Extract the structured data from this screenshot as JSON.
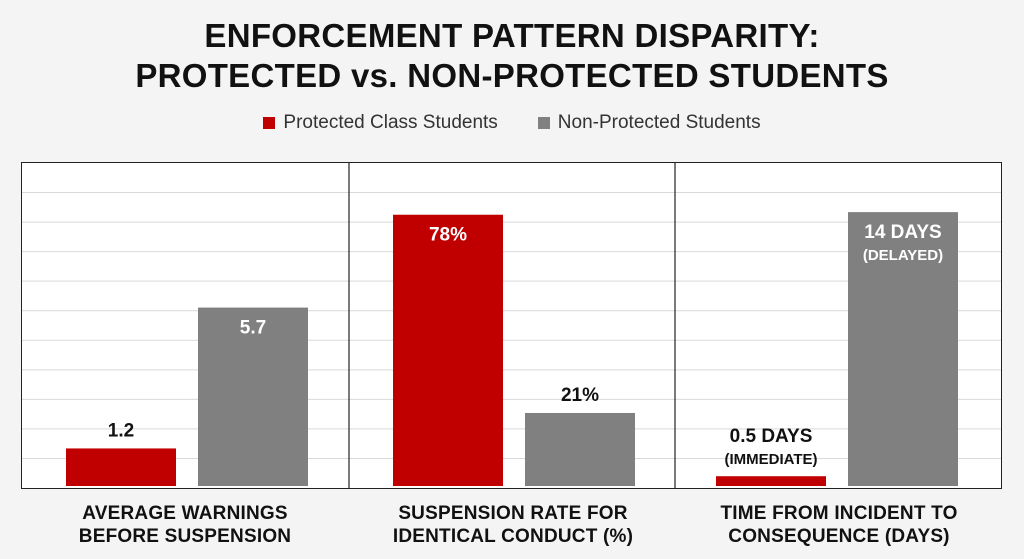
{
  "chart_data": {
    "type": "bar",
    "title_lines": [
      "ENFORCEMENT PATTERN DISPARITY:",
      "PROTECTED vs. NON-PROTECTED STUDENTS"
    ],
    "legend": [
      {
        "name": "Protected Class Students",
        "color": "#c00000"
      },
      {
        "name": "Non-Protected Students",
        "color": "#808080"
      }
    ],
    "panels": [
      {
        "category_lines": [
          "AVERAGE WARNINGS",
          "BEFORE SUSPENSION"
        ],
        "ylim": [
          0,
          10
        ],
        "values": [
          1.2,
          5.7
        ],
        "data_labels": [
          [
            "1.2"
          ],
          [
            "5.7"
          ]
        ],
        "label_inside": [
          false,
          true
        ]
      },
      {
        "category_lines": [
          "SUSPENSION RATE FOR",
          "IDENTICAL CONDUCT (%)"
        ],
        "ylim": [
          0,
          90
        ],
        "values": [
          78,
          21
        ],
        "data_labels": [
          [
            "78%"
          ],
          [
            "21%"
          ]
        ],
        "label_inside": [
          true,
          false
        ]
      },
      {
        "category_lines": [
          "TIME FROM INCIDENT TO",
          "CONSEQUENCE (DAYS)"
        ],
        "ylim": [
          0,
          16
        ],
        "values": [
          0.5,
          14
        ],
        "data_labels": [
          [
            "0.5 DAYS",
            "(IMMEDIATE)"
          ],
          [
            "14 DAYS",
            "(DELAYED)"
          ]
        ],
        "label_inside": [
          false,
          true
        ]
      }
    ],
    "grid": true
  }
}
